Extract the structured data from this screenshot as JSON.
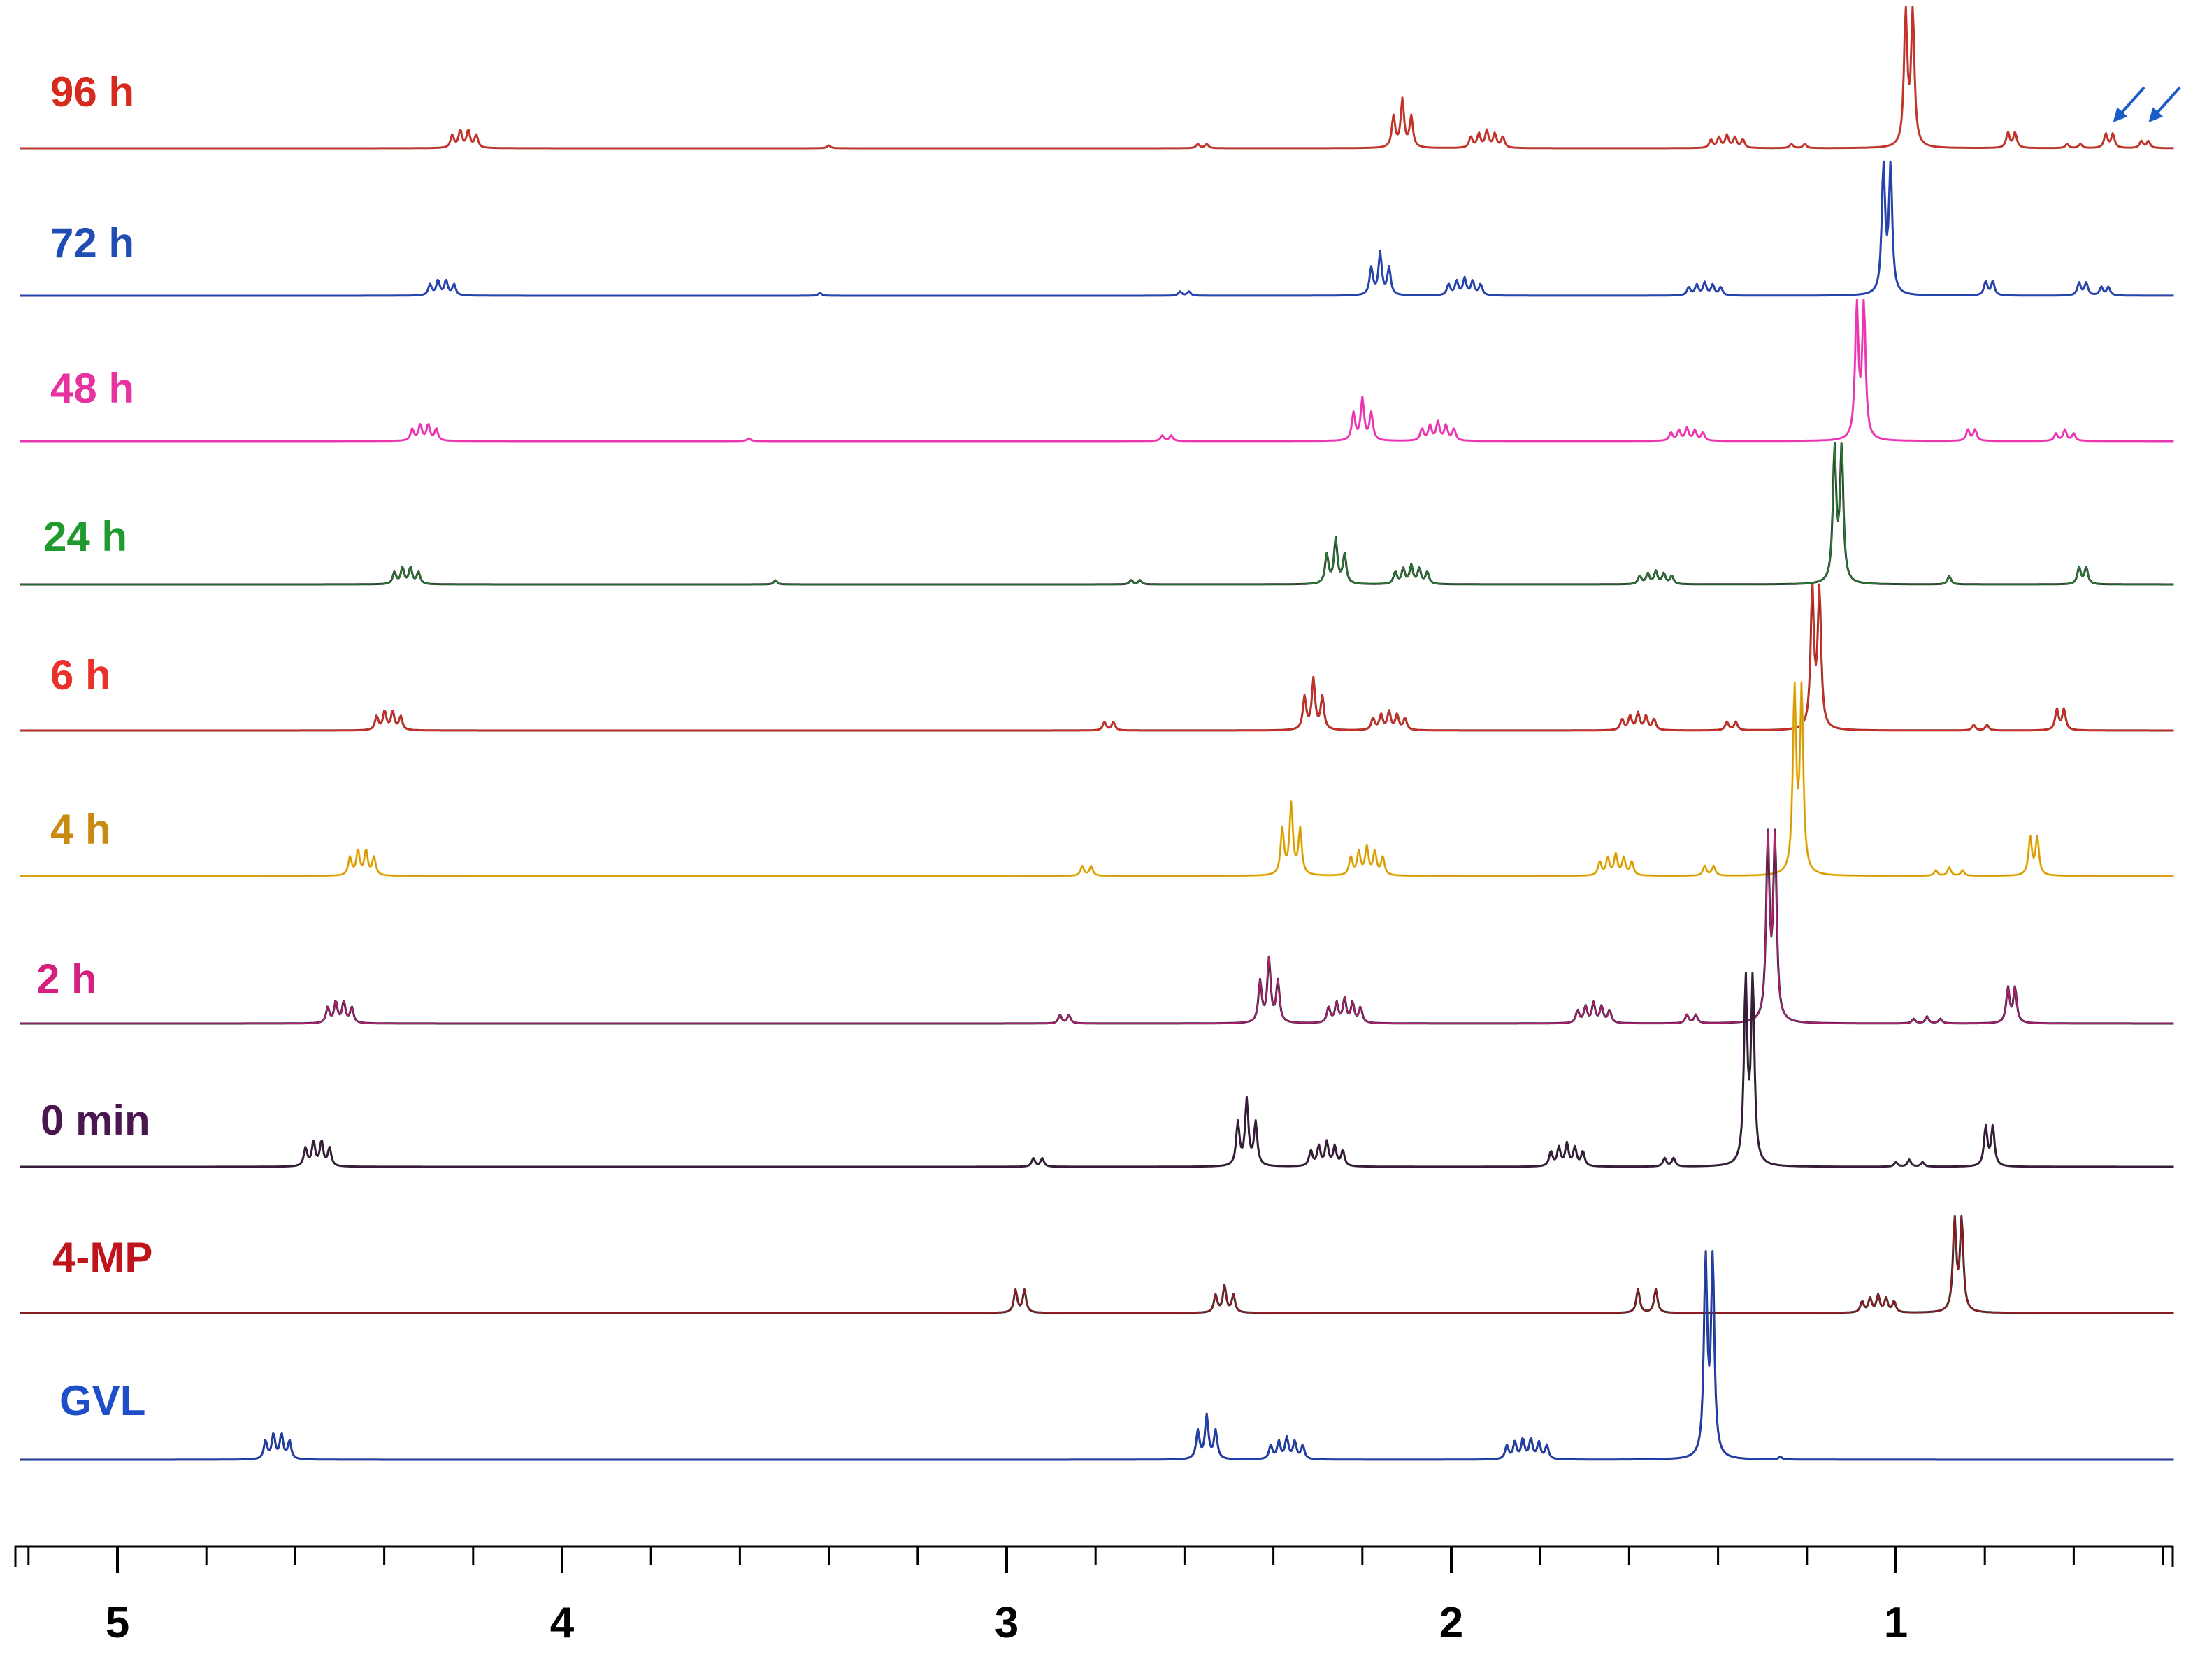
{
  "chart_data": {
    "type": "line",
    "title": "",
    "xlabel": "",
    "ylabel": "",
    "x_axis": {
      "xlim": [
        5.2,
        0.35
      ],
      "reversed": true,
      "major_ticks": [
        5,
        4,
        3,
        2,
        1
      ],
      "major_tick_labels": [
        "5",
        "4",
        "3",
        "2",
        "1"
      ],
      "minor_tick_step": 0.2
    },
    "grid": false,
    "legend": "none (labels printed at left of each trace)",
    "annotations": [
      {
        "type": "arrow",
        "color": "#1a5cc8",
        "series": "96 h",
        "points_to_ppm": 0.52
      },
      {
        "type": "arrow",
        "color": "#1a5cc8",
        "series": "96 h",
        "points_to_ppm": 0.44
      }
    ],
    "series": [
      {
        "name": "96 h",
        "color": "#d62a1e",
        "line_color": "#b0403a",
        "peaks": [
          {
            "ppm": 4.22,
            "height": 0.14,
            "n": 4,
            "j": 0.018
          },
          {
            "ppm": 3.4,
            "height": 0.02,
            "n": 1,
            "j": 0
          },
          {
            "ppm": 2.56,
            "height": 0.03,
            "n": 2,
            "j": 0.02
          },
          {
            "ppm": 2.11,
            "height": 0.34,
            "n": 3,
            "j": 0.02
          },
          {
            "ppm": 1.92,
            "height": 0.12,
            "n": 5,
            "j": 0.018
          },
          {
            "ppm": 1.38,
            "height": 0.09,
            "n": 5,
            "j": 0.018
          },
          {
            "ppm": 1.22,
            "height": 0.03,
            "n": 2,
            "j": 0.03
          },
          {
            "ppm": 0.97,
            "height": 0.95,
            "n": 2,
            "j": 0.016
          },
          {
            "ppm": 0.74,
            "height": 0.11,
            "n": 2,
            "j": 0.016
          },
          {
            "ppm": 0.6,
            "height": 0.03,
            "n": 2,
            "j": 0.03
          },
          {
            "ppm": 0.52,
            "height": 0.1,
            "n": 2,
            "j": 0.016
          },
          {
            "ppm": 0.44,
            "height": 0.05,
            "n": 2,
            "j": 0.016
          }
        ]
      },
      {
        "name": "72 h",
        "color": "#1f4db3",
        "line_color": "#2b3aa6",
        "peaks": [
          {
            "ppm": 4.27,
            "height": 0.12,
            "n": 4,
            "j": 0.018
          },
          {
            "ppm": 3.42,
            "height": 0.02,
            "n": 1,
            "j": 0
          },
          {
            "ppm": 2.6,
            "height": 0.03,
            "n": 2,
            "j": 0.02
          },
          {
            "ppm": 2.16,
            "height": 0.3,
            "n": 3,
            "j": 0.02
          },
          {
            "ppm": 1.97,
            "height": 0.12,
            "n": 5,
            "j": 0.018
          },
          {
            "ppm": 1.43,
            "height": 0.09,
            "n": 5,
            "j": 0.018
          },
          {
            "ppm": 1.02,
            "height": 0.9,
            "n": 2,
            "j": 0.016
          },
          {
            "ppm": 0.79,
            "height": 0.1,
            "n": 2,
            "j": 0.016
          },
          {
            "ppm": 0.58,
            "height": 0.09,
            "n": 2,
            "j": 0.016
          },
          {
            "ppm": 0.53,
            "height": 0.06,
            "n": 2,
            "j": 0.016
          }
        ]
      },
      {
        "name": "48 h",
        "color": "#e8339f",
        "line_color": "#ee3fc4",
        "peaks": [
          {
            "ppm": 4.31,
            "height": 0.13,
            "n": 4,
            "j": 0.018
          },
          {
            "ppm": 3.58,
            "height": 0.02,
            "n": 1,
            "j": 0
          },
          {
            "ppm": 2.64,
            "height": 0.04,
            "n": 2,
            "j": 0.02
          },
          {
            "ppm": 2.2,
            "height": 0.3,
            "n": 3,
            "j": 0.02
          },
          {
            "ppm": 2.03,
            "height": 0.13,
            "n": 5,
            "j": 0.018
          },
          {
            "ppm": 1.47,
            "height": 0.09,
            "n": 5,
            "j": 0.018
          },
          {
            "ppm": 1.08,
            "height": 0.95,
            "n": 2,
            "j": 0.016
          },
          {
            "ppm": 0.83,
            "height": 0.08,
            "n": 2,
            "j": 0.016
          },
          {
            "ppm": 0.62,
            "height": 0.08,
            "n": 3,
            "j": 0.02
          }
        ]
      },
      {
        "name": "24 h",
        "color": "#1e9a2e",
        "line_color": "#2f2f2f",
        "peaks": [
          {
            "ppm": 4.35,
            "height": 0.13,
            "n": 4,
            "j": 0.018
          },
          {
            "ppm": 3.52,
            "height": 0.03,
            "n": 1,
            "j": 0
          },
          {
            "ppm": 2.71,
            "height": 0.03,
            "n": 2,
            "j": 0.02
          },
          {
            "ppm": 2.26,
            "height": 0.32,
            "n": 3,
            "j": 0.02
          },
          {
            "ppm": 2.09,
            "height": 0.13,
            "n": 5,
            "j": 0.018
          },
          {
            "ppm": 1.54,
            "height": 0.09,
            "n": 5,
            "j": 0.018
          },
          {
            "ppm": 1.13,
            "height": 0.95,
            "n": 2,
            "j": 0.016
          },
          {
            "ppm": 0.88,
            "height": 0.06,
            "n": 1,
            "j": 0
          },
          {
            "ppm": 0.58,
            "height": 0.12,
            "n": 2,
            "j": 0.016
          }
        ]
      },
      {
        "name": "6 h",
        "color": "#e8322a",
        "line_color": "#8b2a22",
        "peaks": [
          {
            "ppm": 4.39,
            "height": 0.15,
            "n": 4,
            "j": 0.018
          },
          {
            "ppm": 2.77,
            "height": 0.06,
            "n": 2,
            "j": 0.02
          },
          {
            "ppm": 2.31,
            "height": 0.36,
            "n": 3,
            "j": 0.02
          },
          {
            "ppm": 2.14,
            "height": 0.13,
            "n": 5,
            "j": 0.018
          },
          {
            "ppm": 1.58,
            "height": 0.12,
            "n": 5,
            "j": 0.018
          },
          {
            "ppm": 1.37,
            "height": 0.06,
            "n": 2,
            "j": 0.02
          },
          {
            "ppm": 1.18,
            "height": 0.98,
            "n": 2,
            "j": 0.016
          },
          {
            "ppm": 0.81,
            "height": 0.04,
            "n": 2,
            "j": 0.03
          },
          {
            "ppm": 0.63,
            "height": 0.15,
            "n": 2,
            "j": 0.016
          }
        ]
      },
      {
        "name": "4 h",
        "color": "#c98a12",
        "line_color": "#f0c01c",
        "peaks": [
          {
            "ppm": 4.45,
            "height": 0.2,
            "n": 4,
            "j": 0.018
          },
          {
            "ppm": 2.82,
            "height": 0.07,
            "n": 2,
            "j": 0.02
          },
          {
            "ppm": 2.36,
            "height": 0.5,
            "n": 3,
            "j": 0.02
          },
          {
            "ppm": 2.19,
            "height": 0.2,
            "n": 5,
            "j": 0.018
          },
          {
            "ppm": 1.63,
            "height": 0.15,
            "n": 5,
            "j": 0.018
          },
          {
            "ppm": 1.42,
            "height": 0.07,
            "n": 2,
            "j": 0.02
          },
          {
            "ppm": 1.22,
            "height": 1.3,
            "n": 2,
            "j": 0.016
          },
          {
            "ppm": 0.88,
            "height": 0.06,
            "n": 3,
            "j": 0.03
          },
          {
            "ppm": 0.69,
            "height": 0.27,
            "n": 2,
            "j": 0.016
          }
        ]
      },
      {
        "name": "2 h",
        "color": "#d6207f",
        "line_color": "#3a1f3a",
        "peaks": [
          {
            "ppm": 4.5,
            "height": 0.17,
            "n": 4,
            "j": 0.018
          },
          {
            "ppm": 2.87,
            "height": 0.06,
            "n": 2,
            "j": 0.02
          },
          {
            "ppm": 2.41,
            "height": 0.45,
            "n": 3,
            "j": 0.02
          },
          {
            "ppm": 2.24,
            "height": 0.17,
            "n": 5,
            "j": 0.018
          },
          {
            "ppm": 1.68,
            "height": 0.14,
            "n": 5,
            "j": 0.018
          },
          {
            "ppm": 1.46,
            "height": 0.06,
            "n": 2,
            "j": 0.02
          },
          {
            "ppm": 1.28,
            "height": 1.3,
            "n": 2,
            "j": 0.016
          },
          {
            "ppm": 0.93,
            "height": 0.05,
            "n": 3,
            "j": 0.03
          },
          {
            "ppm": 0.74,
            "height": 0.25,
            "n": 2,
            "j": 0.016
          }
        ]
      },
      {
        "name": "0 min",
        "color": "#4a1650",
        "line_color": "#222222",
        "peaks": [
          {
            "ppm": 4.55,
            "height": 0.2,
            "n": 4,
            "j": 0.018
          },
          {
            "ppm": 2.93,
            "height": 0.06,
            "n": 2,
            "j": 0.02
          },
          {
            "ppm": 2.46,
            "height": 0.47,
            "n": 3,
            "j": 0.02
          },
          {
            "ppm": 2.28,
            "height": 0.17,
            "n": 5,
            "j": 0.018
          },
          {
            "ppm": 1.74,
            "height": 0.16,
            "n": 5,
            "j": 0.018
          },
          {
            "ppm": 1.51,
            "height": 0.06,
            "n": 2,
            "j": 0.02
          },
          {
            "ppm": 1.33,
            "height": 1.3,
            "n": 2,
            "j": 0.016
          },
          {
            "ppm": 0.97,
            "height": 0.05,
            "n": 3,
            "j": 0.03
          },
          {
            "ppm": 0.79,
            "height": 0.28,
            "n": 2,
            "j": 0.016
          }
        ]
      },
      {
        "name": "4-MP",
        "color": "#c0141c",
        "line_color": "#2a2a2a",
        "peaks": [
          {
            "ppm": 2.97,
            "height": 0.16,
            "n": 2,
            "j": 0.02
          },
          {
            "ppm": 2.51,
            "height": 0.19,
            "n": 3,
            "j": 0.02
          },
          {
            "ppm": 1.56,
            "height": 0.17,
            "n": 2,
            "j": 0.04
          },
          {
            "ppm": 1.04,
            "height": 0.12,
            "n": 5,
            "j": 0.018
          },
          {
            "ppm": 0.86,
            "height": 0.65,
            "n": 2,
            "j": 0.016
          }
        ]
      },
      {
        "name": "GVL",
        "color": "#1f4fc8",
        "line_color": "#1f2a7a",
        "peaks": [
          {
            "ppm": 4.64,
            "height": 0.2,
            "n": 4,
            "j": 0.018
          },
          {
            "ppm": 2.55,
            "height": 0.31,
            "n": 3,
            "j": 0.02
          },
          {
            "ppm": 2.37,
            "height": 0.15,
            "n": 5,
            "j": 0.018
          },
          {
            "ppm": 1.83,
            "height": 0.15,
            "n": 6,
            "j": 0.018
          },
          {
            "ppm": 1.42,
            "height": 1.4,
            "n": 2,
            "j": 0.016
          },
          {
            "ppm": 1.26,
            "height": 0.02,
            "n": 1,
            "j": 0
          }
        ]
      }
    ]
  }
}
